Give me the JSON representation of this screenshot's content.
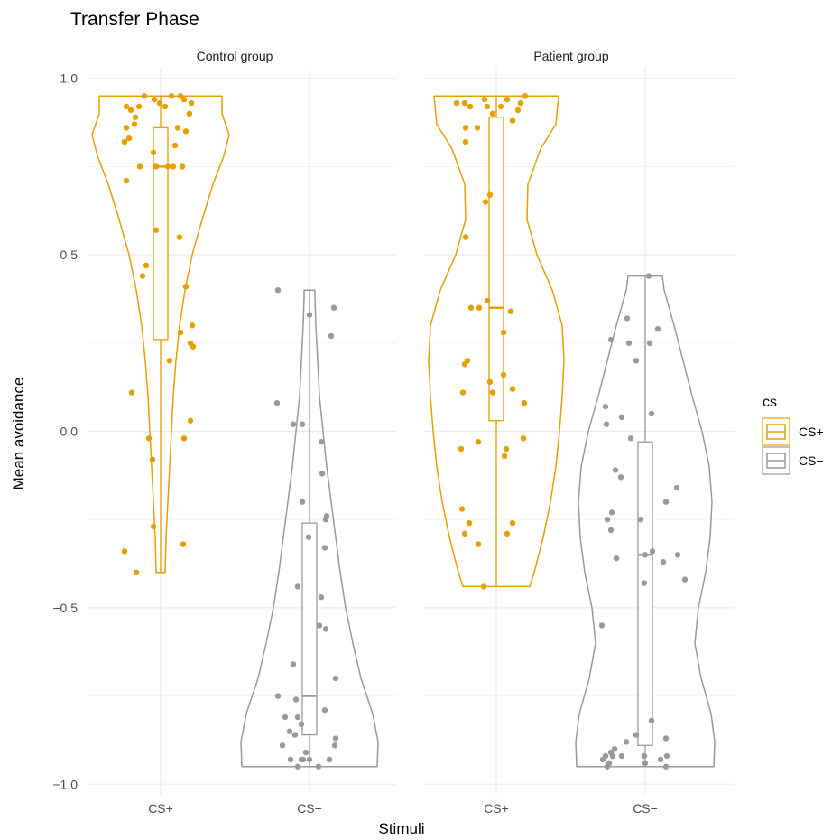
{
  "chart_data": {
    "type": "violin",
    "title": "Transfer Phase",
    "xlabel": "Stimuli",
    "ylabel": "Mean avoidance",
    "ylim": [
      -1.03,
      1.03
    ],
    "y_ticks": [
      -1.0,
      -0.5,
      0.0,
      0.5,
      1.0
    ],
    "y_tick_labels": [
      "−1.0",
      "−0.5",
      "0.0",
      "0.5",
      "1.0"
    ],
    "categories": [
      "CS+",
      "CS−"
    ],
    "grid": true,
    "legend": {
      "title": "cs",
      "position": "right",
      "entries": [
        {
          "label": "CS+",
          "color": "#E69F00"
        },
        {
          "label": "CS−",
          "color": "#999999"
        }
      ]
    },
    "panels": [
      {
        "label": "Control group",
        "groups": [
          {
            "category": "CS+",
            "color": "#E69F00",
            "violin": {
              "y": [
                -0.4,
                -0.3,
                -0.2,
                -0.1,
                0.0,
                0.1,
                0.2,
                0.3,
                0.4,
                0.5,
                0.6,
                0.7,
                0.78,
                0.84,
                0.9,
                0.95
              ],
              "half_width": [
                0.05,
                0.06,
                0.08,
                0.1,
                0.12,
                0.14,
                0.17,
                0.21,
                0.27,
                0.35,
                0.46,
                0.58,
                0.7,
                0.76,
                0.68,
                0.68
              ]
            },
            "box": {
              "q1": 0.26,
              "median": 0.75,
              "q3": 0.86,
              "whisker_low": -0.4,
              "whisker_high": 0.95
            },
            "points": [
              [
                -0.18,
                0.95
              ],
              [
                -0.07,
                0.94
              ],
              [
                0.12,
                0.95
              ],
              [
                0.22,
                0.95
              ],
              [
                0.26,
                0.94
              ],
              [
                0.34,
                0.93
              ],
              [
                -0.38,
                0.92
              ],
              [
                -0.24,
                0.92
              ],
              [
                -0.01,
                0.93
              ],
              [
                0.05,
                0.92
              ],
              [
                -0.33,
                0.91
              ],
              [
                -0.28,
                0.89
              ],
              [
                0.32,
                0.9
              ],
              [
                -0.38,
                0.86
              ],
              [
                -0.29,
                0.87
              ],
              [
                0.19,
                0.86
              ],
              [
                0.28,
                0.85
              ],
              [
                -0.35,
                0.83
              ],
              [
                -0.4,
                0.82
              ],
              [
                0.16,
                0.81
              ],
              [
                -0.08,
                0.79
              ],
              [
                -0.23,
                0.75
              ],
              [
                -0.05,
                0.75
              ],
              [
                0.08,
                0.75
              ],
              [
                0.14,
                0.75
              ],
              [
                0.24,
                0.75
              ],
              [
                -0.38,
                0.71
              ],
              [
                -0.05,
                0.57
              ],
              [
                0.21,
                0.55
              ],
              [
                -0.16,
                0.47
              ],
              [
                -0.2,
                0.44
              ],
              [
                0.28,
                0.41
              ],
              [
                0.35,
                0.3
              ],
              [
                0.22,
                0.28
              ],
              [
                0.33,
                0.25
              ],
              [
                0.36,
                0.24
              ],
              [
                0.1,
                0.2
              ],
              [
                -0.32,
                0.11
              ],
              [
                0.33,
                0.03
              ],
              [
                -0.13,
                -0.02
              ],
              [
                0.26,
                -0.02
              ],
              [
                -0.09,
                -0.08
              ],
              [
                -0.08,
                -0.27
              ],
              [
                -0.4,
                -0.34
              ],
              [
                0.25,
                -0.32
              ],
              [
                -0.27,
                -0.4
              ]
            ]
          },
          {
            "category": "CS−",
            "color": "#999999",
            "violin": {
              "y": [
                -0.95,
                -0.88,
                -0.8,
                -0.7,
                -0.6,
                -0.5,
                -0.4,
                -0.3,
                -0.2,
                -0.1,
                0.0,
                0.1,
                0.2,
                0.3,
                0.38,
                0.4
              ],
              "half_width": [
                0.75,
                0.76,
                0.7,
                0.57,
                0.48,
                0.4,
                0.34,
                0.29,
                0.24,
                0.19,
                0.15,
                0.11,
                0.09,
                0.07,
                0.06,
                0.06
              ]
            },
            "box": {
              "q1": -0.86,
              "median": -0.75,
              "q3": -0.26,
              "whisker_low": -0.95,
              "whisker_high": 0.4
            },
            "points": [
              [
                -0.35,
                0.4
              ],
              [
                0.0,
                0.33
              ],
              [
                0.27,
                0.35
              ],
              [
                0.24,
                0.27
              ],
              [
                -0.36,
                0.08
              ],
              [
                -0.18,
                0.02
              ],
              [
                -0.08,
                0.02
              ],
              [
                0.13,
                -0.03
              ],
              [
                0.14,
                -0.12
              ],
              [
                -0.08,
                -0.2
              ],
              [
                0.19,
                -0.24
              ],
              [
                0.18,
                -0.25
              ],
              [
                -0.01,
                -0.3
              ],
              [
                0.17,
                -0.33
              ],
              [
                -0.13,
                -0.44
              ],
              [
                0.13,
                -0.47
              ],
              [
                0.11,
                -0.55
              ],
              [
                0.18,
                -0.56
              ],
              [
                0.29,
                -0.7
              ],
              [
                -0.18,
                -0.66
              ],
              [
                -0.35,
                -0.75
              ],
              [
                -0.15,
                -0.76
              ],
              [
                0.17,
                -0.79
              ],
              [
                -0.27,
                -0.81
              ],
              [
                -0.13,
                -0.81
              ],
              [
                -0.09,
                -0.83
              ],
              [
                -0.22,
                -0.85
              ],
              [
                -0.16,
                -0.86
              ],
              [
                0.29,
                -0.87
              ],
              [
                0.28,
                -0.89
              ],
              [
                -0.3,
                -0.89
              ],
              [
                -0.04,
                -0.91
              ],
              [
                -0.07,
                -0.93
              ],
              [
                -0.21,
                -0.93
              ],
              [
                0.0,
                -0.93
              ],
              [
                0.22,
                -0.93
              ],
              [
                -0.13,
                -0.95
              ],
              [
                0.1,
                -0.95
              ],
              [
                -0.09,
                -0.93
              ]
            ]
          }
        ]
      },
      {
        "label": "Patient group",
        "groups": [
          {
            "category": "CS+",
            "color": "#E69F00",
            "violin": {
              "y": [
                -0.44,
                -0.4,
                -0.3,
                -0.2,
                -0.1,
                0.0,
                0.1,
                0.2,
                0.3,
                0.4,
                0.5,
                0.6,
                0.7,
                0.8,
                0.87,
                0.95
              ],
              "half_width": [
                0.37,
                0.42,
                0.52,
                0.6,
                0.66,
                0.7,
                0.73,
                0.75,
                0.73,
                0.62,
                0.45,
                0.34,
                0.35,
                0.49,
                0.66,
                0.69
              ]
            },
            "box": {
              "q1": 0.03,
              "median": 0.35,
              "q3": 0.89,
              "whisker_low": -0.44,
              "whisker_high": 0.95
            },
            "points": [
              [
                -0.44,
                0.93
              ],
              [
                -0.35,
                0.93
              ],
              [
                -0.13,
                0.94
              ],
              [
                0.05,
                0.92
              ],
              [
                0.12,
                0.94
              ],
              [
                0.27,
                0.93
              ],
              [
                0.32,
                0.95
              ],
              [
                -0.29,
                0.92
              ],
              [
                -0.1,
                0.92
              ],
              [
                0.24,
                0.91
              ],
              [
                -0.04,
                0.9
              ],
              [
                0.18,
                0.88
              ],
              [
                -0.34,
                0.86
              ],
              [
                -0.21,
                0.86
              ],
              [
                -0.34,
                0.82
              ],
              [
                -0.12,
                0.65
              ],
              [
                -0.07,
                0.67
              ],
              [
                -0.34,
                0.55
              ],
              [
                -0.1,
                0.37
              ],
              [
                0.16,
                0.34
              ],
              [
                -0.28,
                0.35
              ],
              [
                -0.19,
                0.35
              ],
              [
                0.08,
                0.28
              ],
              [
                -0.32,
                0.2
              ],
              [
                -0.35,
                0.19
              ],
              [
                -0.07,
                0.14
              ],
              [
                0.08,
                0.16
              ],
              [
                0.18,
                0.12
              ],
              [
                -0.37,
                0.11
              ],
              [
                -0.04,
                0.11
              ],
              [
                0.31,
                0.08
              ],
              [
                0.3,
                -0.02
              ],
              [
                -0.2,
                -0.03
              ],
              [
                -0.39,
                -0.05
              ],
              [
                0.11,
                -0.05
              ],
              [
                0.09,
                -0.07
              ],
              [
                -0.38,
                -0.22
              ],
              [
                -0.3,
                -0.26
              ],
              [
                0.18,
                -0.26
              ],
              [
                -0.35,
                -0.29
              ],
              [
                0.12,
                -0.29
              ],
              [
                -0.2,
                -0.32
              ],
              [
                -0.14,
                -0.44
              ]
            ]
          },
          {
            "category": "CS−",
            "color": "#999999",
            "violin": {
              "y": [
                -0.95,
                -0.88,
                -0.8,
                -0.7,
                -0.6,
                -0.5,
                -0.4,
                -0.3,
                -0.2,
                -0.1,
                0.0,
                0.1,
                0.2,
                0.3,
                0.4,
                0.44
              ],
              "half_width": [
                0.76,
                0.77,
                0.73,
                0.62,
                0.55,
                0.59,
                0.67,
                0.72,
                0.74,
                0.71,
                0.63,
                0.52,
                0.42,
                0.32,
                0.21,
                0.19
              ]
            },
            "box": {
              "q1": -0.89,
              "median": -0.35,
              "q3": -0.03,
              "whisker_low": -0.95,
              "whisker_high": 0.44
            },
            "points": [
              [
                -0.2,
                0.32
              ],
              [
                -0.18,
                0.25
              ],
              [
                0.04,
                0.44
              ],
              [
                0.14,
                0.29
              ],
              [
                0.05,
                0.25
              ],
              [
                -0.38,
                0.26
              ],
              [
                -0.1,
                0.2
              ],
              [
                -0.44,
                0.07
              ],
              [
                -0.26,
                0.04
              ],
              [
                0.07,
                0.05
              ],
              [
                -0.43,
                0.02
              ],
              [
                -0.16,
                -0.02
              ],
              [
                0.35,
                -0.16
              ],
              [
                -0.33,
                -0.11
              ],
              [
                -0.27,
                -0.13
              ],
              [
                -0.42,
                -0.25
              ],
              [
                0.23,
                -0.2
              ],
              [
                -0.37,
                -0.23
              ],
              [
                -0.32,
                -0.36
              ],
              [
                0.0,
                -0.35
              ],
              [
                0.08,
                -0.34
              ],
              [
                0.36,
                -0.35
              ],
              [
                -0.38,
                -0.28
              ],
              [
                0.2,
                -0.37
              ],
              [
                -0.01,
                -0.43
              ],
              [
                -0.48,
                -0.55
              ],
              [
                0.44,
                -0.42
              ],
              [
                -0.05,
                -0.25
              ],
              [
                0.07,
                -0.82
              ],
              [
                -0.1,
                -0.86
              ],
              [
                0.23,
                -0.87
              ],
              [
                -0.21,
                -0.88
              ],
              [
                -0.34,
                -0.9
              ],
              [
                -0.38,
                -0.91
              ],
              [
                -0.36,
                -0.92
              ],
              [
                -0.26,
                -0.92
              ],
              [
                -0.01,
                -0.92
              ],
              [
                0.17,
                -0.93
              ],
              [
                -0.47,
                -0.93
              ],
              [
                -0.4,
                -0.94
              ],
              [
                0.23,
                -0.95
              ],
              [
                0.24,
                -0.92
              ],
              [
                0.0,
                -0.94
              ],
              [
                -0.44,
                -0.92
              ],
              [
                -0.42,
                -0.95
              ]
            ]
          }
        ]
      }
    ]
  }
}
